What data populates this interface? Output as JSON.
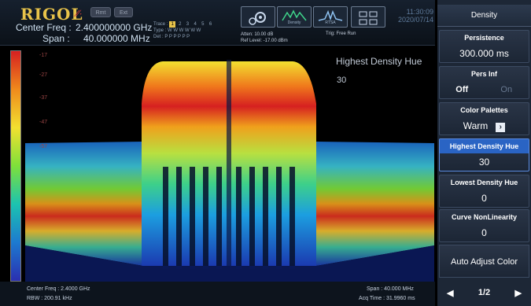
{
  "header": {
    "logo": "RIGOL",
    "logo_mark": "∕∕∙",
    "rmt_label": "Rmt",
    "ext_label": "Ext",
    "center_freq_label": "Center Freq :",
    "center_freq_value": "2.400000000 GHz",
    "span_label": "Span :",
    "span_value": "40.000000 MHz",
    "trace_label": "Trace :",
    "trace_numbers": [
      "1",
      "2",
      "3",
      "4",
      "5",
      "6"
    ],
    "type_label": "Type :",
    "type_value": "W W W W W W",
    "det_label": "Det :",
    "det_value": "P P P P P P",
    "atten": "Atten: 10.00 dB",
    "ref_level": "Ref Level: -17.00 dBm",
    "trig": "Trig: Free Run",
    "tools": [
      "gear-icon",
      "Density",
      "RTSA",
      "layout-icon"
    ],
    "time": "11:30:09",
    "date": "2020/07/14"
  },
  "plot": {
    "y_ticks": [
      "-17",
      "-27",
      "-37",
      "-47",
      "-57"
    ],
    "overlay_title": "Highest Density Hue",
    "overlay_value": "30"
  },
  "footer": {
    "center_freq": "Center Freq : 2.4000 GHz",
    "rbw": "RBW : 200.91 kHz",
    "span": "Span : 40.000 MHz",
    "acq_time": "Acq Time : 31.9960 ms"
  },
  "menu": {
    "title": "Density",
    "persistence_label": "Persistence",
    "persistence_value": "300.000 ms",
    "pers_inf_label": "Pers Inf",
    "pers_inf_off": "Off",
    "pers_inf_on": "On",
    "palettes_label": "Color Palettes",
    "palettes_value": "Warm",
    "highest_label": "Highest Density Hue",
    "highest_value": "30",
    "lowest_label": "Lowest Density Hue",
    "lowest_value": "0",
    "curve_label": "Curve NonLinearity",
    "curve_value": "0",
    "auto_label": "Auto Adjust Color",
    "page": "1/2"
  },
  "colors": {
    "accent": "#2a64c4",
    "logo": "#e8c34a",
    "active_trace": "#e8c34a"
  }
}
